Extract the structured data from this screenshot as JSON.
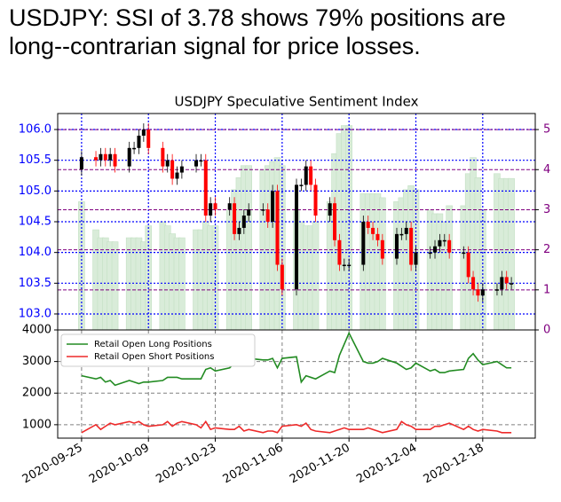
{
  "headline": [
    "USDJPY: SSI of 3.78 shows 79% positions are",
    "long--contrarian signal for price losses."
  ],
  "chart_data": [
    {
      "type": "candlestick",
      "title": "USDJPY Speculative Sentiment Index",
      "x": [
        "2020-09-25",
        "2020-09-28",
        "2020-09-29",
        "2020-09-30",
        "2020-10-01",
        "2020-10-02",
        "2020-10-05",
        "2020-10-06",
        "2020-10-07",
        "2020-10-08",
        "2020-10-09",
        "2020-10-12",
        "2020-10-13",
        "2020-10-14",
        "2020-10-15",
        "2020-10-16",
        "2020-10-19",
        "2020-10-20",
        "2020-10-21",
        "2020-10-22",
        "2020-10-23",
        "2020-10-26",
        "2020-10-27",
        "2020-10-28",
        "2020-10-29",
        "2020-10-30",
        "2020-11-02",
        "2020-11-03",
        "2020-11-04",
        "2020-11-05",
        "2020-11-06",
        "2020-11-09",
        "2020-11-10",
        "2020-11-11",
        "2020-11-12",
        "2020-11-13",
        "2020-11-16",
        "2020-11-17",
        "2020-11-18",
        "2020-11-19",
        "2020-11-20",
        "2020-11-23",
        "2020-11-24",
        "2020-11-25",
        "2020-11-26",
        "2020-11-27",
        "2020-11-30",
        "2020-12-01",
        "2020-12-02",
        "2020-12-03",
        "2020-12-04",
        "2020-12-07",
        "2020-12-08",
        "2020-12-09",
        "2020-12-10",
        "2020-12-11",
        "2020-12-14",
        "2020-12-15",
        "2020-12-16",
        "2020-12-17",
        "2020-12-18",
        "2020-12-21",
        "2020-12-22",
        "2020-12-23",
        "2020-12-24"
      ],
      "open": [
        105.35,
        105.55,
        105.5,
        105.6,
        105.5,
        105.6,
        105.4,
        105.7,
        105.7,
        105.9,
        106.0,
        105.7,
        105.4,
        105.5,
        105.2,
        105.3,
        105.4,
        105.5,
        105.5,
        104.6,
        104.8,
        104.7,
        104.8,
        104.3,
        104.4,
        104.6,
        104.7,
        104.7,
        104.5,
        105.0,
        103.8,
        103.4,
        105.1,
        105.1,
        105.4,
        105.1,
        104.6,
        104.8,
        104.2,
        103.8,
        103.8,
        103.8,
        104.5,
        104.4,
        104.3,
        104.2,
        103.9,
        104.3,
        104.3,
        104.4,
        103.8,
        104.0,
        104.0,
        104.1,
        104.2,
        104.2,
        104.0,
        104.0,
        103.6,
        103.4,
        103.3,
        103.4,
        103.4,
        103.6,
        103.5
      ],
      "high": [
        105.65,
        105.65,
        105.7,
        105.7,
        105.7,
        105.7,
        105.8,
        105.8,
        106.0,
        106.1,
        106.1,
        105.8,
        105.6,
        105.6,
        105.4,
        105.5,
        105.6,
        105.6,
        105.6,
        104.9,
        104.9,
        104.9,
        104.9,
        104.5,
        104.7,
        104.8,
        104.8,
        104.8,
        105.1,
        105.1,
        103.9,
        105.2,
        105.2,
        105.5,
        105.5,
        105.2,
        104.9,
        104.9,
        104.3,
        103.9,
        103.9,
        104.6,
        104.6,
        104.5,
        104.4,
        104.3,
        104.4,
        104.4,
        104.5,
        104.5,
        104.1,
        104.1,
        104.2,
        104.3,
        104.3,
        104.3,
        104.1,
        104.1,
        103.7,
        103.5,
        103.5,
        103.5,
        103.7,
        103.7,
        103.6
      ],
      "low": [
        105.25,
        105.4,
        105.4,
        105.4,
        105.4,
        105.3,
        105.3,
        105.6,
        105.6,
        105.8,
        105.6,
        105.3,
        105.3,
        105.1,
        105.1,
        105.2,
        105.3,
        105.4,
        104.5,
        104.5,
        104.6,
        104.6,
        104.2,
        104.2,
        104.3,
        104.5,
        104.6,
        104.4,
        104.4,
        103.7,
        103.3,
        103.3,
        105.0,
        105.0,
        105.0,
        104.5,
        104.5,
        104.1,
        103.7,
        103.7,
        103.7,
        103.7,
        104.3,
        104.2,
        104.1,
        103.8,
        103.8,
        104.2,
        104.2,
        103.7,
        103.7,
        103.9,
        103.9,
        104.0,
        104.1,
        103.9,
        103.9,
        103.5,
        103.3,
        103.2,
        103.2,
        103.3,
        103.3,
        103.4,
        103.4
      ],
      "close": [
        105.55,
        105.5,
        105.6,
        105.5,
        105.6,
        105.4,
        105.7,
        105.7,
        105.9,
        106.0,
        105.7,
        105.4,
        105.5,
        105.2,
        105.3,
        105.4,
        105.5,
        105.5,
        104.6,
        104.8,
        104.7,
        104.8,
        104.3,
        104.4,
        104.6,
        104.7,
        104.7,
        104.5,
        105.0,
        103.8,
        103.4,
        105.1,
        105.1,
        105.4,
        105.1,
        104.6,
        104.8,
        104.2,
        103.8,
        103.8,
        103.8,
        104.5,
        104.4,
        104.3,
        104.2,
        103.9,
        104.3,
        104.3,
        104.4,
        103.8,
        104.0,
        104.0,
        104.1,
        104.2,
        104.2,
        104.0,
        104.0,
        103.6,
        103.4,
        103.3,
        103.4,
        103.4,
        103.6,
        103.5,
        103.5
      ],
      "up_color": "#000000",
      "down_color": "#ff0000",
      "series": [
        {
          "axis": "y2",
          "color": "#d9ecd9",
          "values": [
            3.2,
            2.5,
            2.3,
            2.3,
            2.2,
            2.2,
            2.3,
            2.3,
            2.3,
            2.2,
            2.6,
            2.7,
            2.6,
            2.4,
            2.3,
            2.3,
            2.5,
            2.5,
            2.7,
            2.6,
            2.6,
            3.0,
            3.5,
            3.8,
            4.1,
            4.1,
            4.0,
            4.1,
            4.2,
            4.3,
            4.1,
            3.0,
            2.7,
            2.6,
            2.6,
            2.7,
            3.2,
            4.4,
            4.9,
            5.1,
            5.1,
            3.4,
            3.4,
            3.4,
            3.4,
            3.3,
            3.2,
            3.3,
            3.5,
            3.6,
            3.5,
            3.0,
            2.9,
            2.9,
            2.7,
            3.1,
            3.1,
            3.9,
            4.3,
            3.8,
            3.0,
            3.9,
            3.78,
            3.78,
            3.78
          ]
        }
      ],
      "xlim": [
        "2020-09-20",
        "2020-12-29"
      ],
      "xticks": [
        "2020-09-25",
        "2020-10-09",
        "2020-10-23",
        "2020-11-06",
        "2020-11-20",
        "2020-12-04",
        "2020-12-18"
      ],
      "ylim": [
        102.74,
        106.26
      ],
      "yticks": [
        {
          "value": 103,
          "label": "103.0"
        },
        {
          "value": 103.5,
          "label": "103.5"
        },
        {
          "value": 104,
          "label": "104.0"
        },
        {
          "value": 104.5,
          "label": "104.5"
        },
        {
          "value": 105,
          "label": "105.0"
        },
        {
          "value": 105.5,
          "label": "105.5"
        },
        {
          "value": 106,
          "label": "106.0"
        }
      ],
      "y2lim": [
        0,
        5.4
      ],
      "y2ticks": [
        0,
        1,
        2,
        3,
        4,
        5
      ],
      "grid": true
    },
    {
      "type": "line",
      "x": [
        "2020-09-25",
        "2020-09-28",
        "2020-09-29",
        "2020-09-30",
        "2020-10-01",
        "2020-10-02",
        "2020-10-05",
        "2020-10-06",
        "2020-10-07",
        "2020-10-08",
        "2020-10-09",
        "2020-10-12",
        "2020-10-13",
        "2020-10-14",
        "2020-10-15",
        "2020-10-16",
        "2020-10-19",
        "2020-10-20",
        "2020-10-21",
        "2020-10-22",
        "2020-10-23",
        "2020-10-26",
        "2020-10-27",
        "2020-10-28",
        "2020-10-29",
        "2020-10-30",
        "2020-11-02",
        "2020-11-03",
        "2020-11-04",
        "2020-11-05",
        "2020-11-06",
        "2020-11-09",
        "2020-11-10",
        "2020-11-11",
        "2020-11-12",
        "2020-11-13",
        "2020-11-16",
        "2020-11-17",
        "2020-11-18",
        "2020-11-19",
        "2020-11-20",
        "2020-11-23",
        "2020-11-24",
        "2020-11-25",
        "2020-11-26",
        "2020-11-27",
        "2020-11-30",
        "2020-12-01",
        "2020-12-02",
        "2020-12-03",
        "2020-12-04",
        "2020-12-07",
        "2020-12-08",
        "2020-12-09",
        "2020-12-10",
        "2020-12-11",
        "2020-12-14",
        "2020-12-15",
        "2020-12-16",
        "2020-12-17",
        "2020-12-18",
        "2020-12-21",
        "2020-12-22",
        "2020-12-23",
        "2020-12-24"
      ],
      "series": [
        {
          "name": "Retail Open Long Positions",
          "color": "#228b22",
          "values": [
            2550,
            2450,
            2500,
            2350,
            2400,
            2250,
            2400,
            2350,
            2300,
            2350,
            2350,
            2400,
            2500,
            2500,
            2500,
            2450,
            2450,
            2450,
            2750,
            2800,
            2700,
            2800,
            2950,
            3050,
            3150,
            3100,
            3050,
            3050,
            3100,
            2800,
            3100,
            3150,
            2350,
            2550,
            2500,
            2450,
            2700,
            2650,
            3200,
            3550,
            3900,
            3000,
            2950,
            2950,
            3000,
            3100,
            2950,
            2850,
            2750,
            2800,
            2950,
            2700,
            2750,
            2650,
            2650,
            2700,
            2750,
            3100,
            3250,
            3050,
            2900,
            3000,
            2900,
            2800,
            2800
          ]
        },
        {
          "name": "Retail Open Short Positions",
          "color": "#ee2a2a",
          "values": [
            750,
            1000,
            850,
            950,
            1050,
            1000,
            1100,
            1050,
            1100,
            1000,
            950,
            1000,
            1100,
            950,
            1050,
            1100,
            1000,
            900,
            1100,
            850,
            900,
            850,
            850,
            950,
            800,
            850,
            750,
            800,
            800,
            750,
            950,
            1000,
            950,
            1050,
            850,
            800,
            750,
            800,
            850,
            900,
            850,
            850,
            900,
            850,
            800,
            750,
            850,
            1100,
            1000,
            950,
            850,
            850,
            950,
            950,
            1000,
            1050,
            850,
            950,
            850,
            800,
            850,
            800,
            750,
            750,
            750
          ]
        }
      ],
      "xlim": [
        "2020-09-20",
        "2020-12-29"
      ],
      "xticks": [
        "2020-09-25",
        "2020-10-09",
        "2020-10-23",
        "2020-11-06",
        "2020-11-20",
        "2020-12-04",
        "2020-12-18"
      ],
      "ylim": [
        575,
        4000
      ],
      "yticks": [
        1000,
        2000,
        3000,
        4000
      ],
      "grid": true,
      "legend": "upper left"
    }
  ]
}
